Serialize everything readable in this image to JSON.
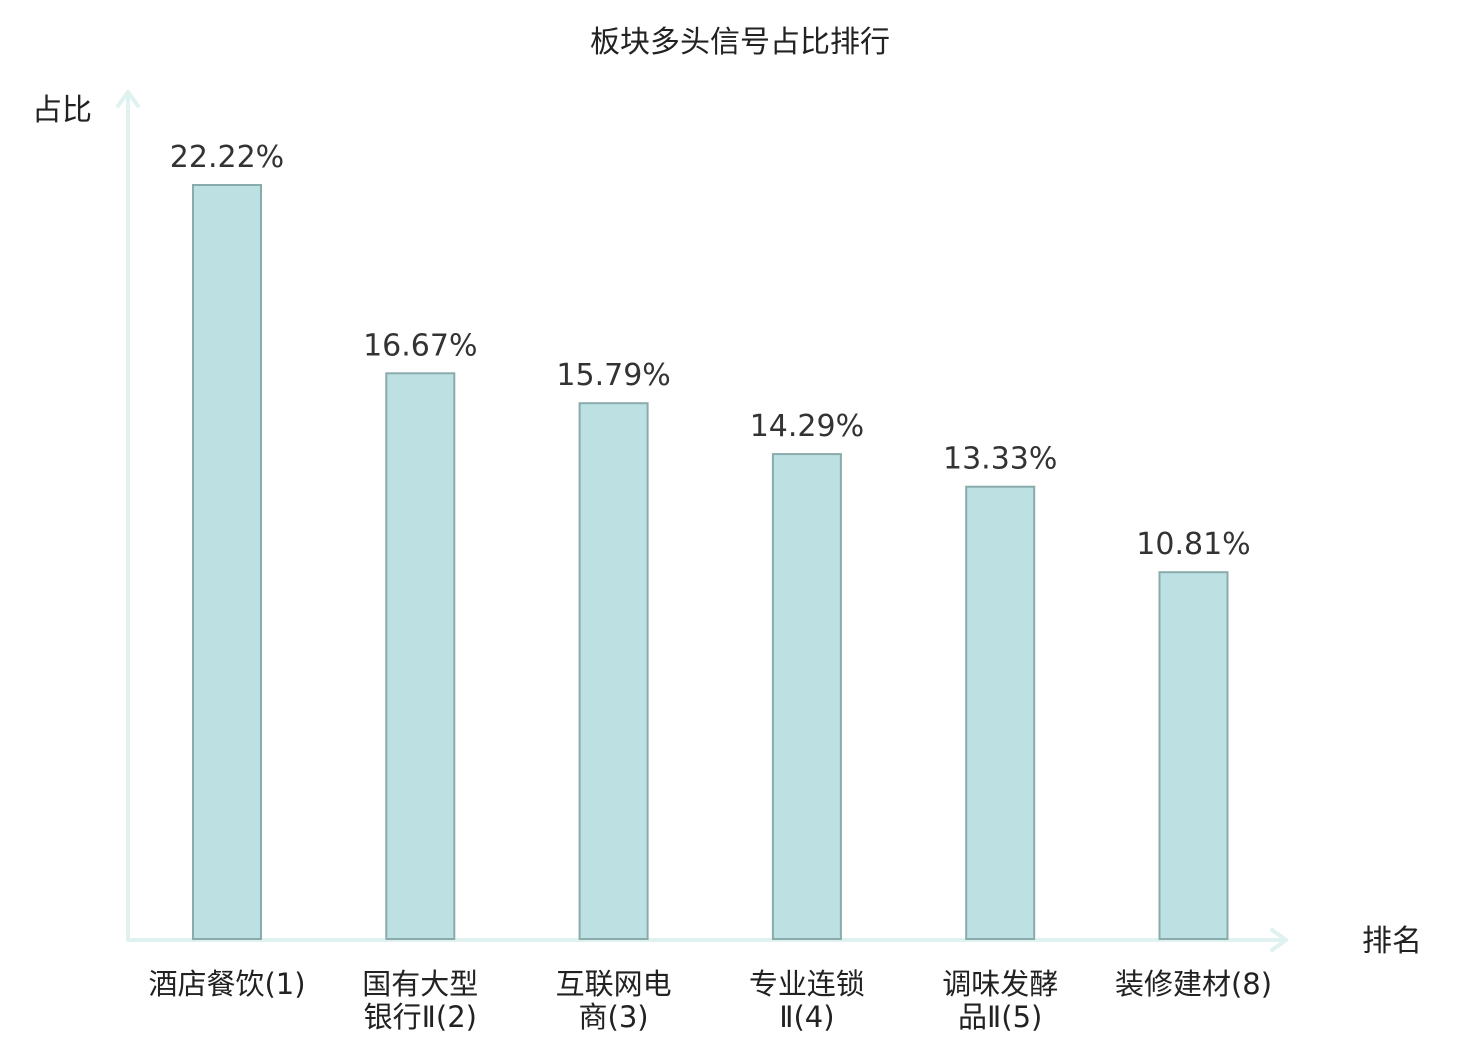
{
  "chart_data": {
    "type": "bar",
    "title": "板块多头信号占比排行",
    "xlabel": "排名",
    "ylabel": "占比",
    "categories": [
      [
        "酒店餐饮(1)"
      ],
      [
        "国有大型",
        "银行Ⅱ(2)"
      ],
      [
        "互联网电",
        "商(3)"
      ],
      [
        "专业连锁",
        "Ⅱ(4)"
      ],
      [
        "调味发酵",
        "品Ⅱ(5)"
      ],
      [
        "装修建材(8)"
      ]
    ],
    "values": [
      22.22,
      16.67,
      15.79,
      14.29,
      13.33,
      10.81
    ],
    "value_labels": [
      "22.22%",
      "16.67%",
      "15.79%",
      "14.29%",
      "13.33%",
      "10.81%"
    ],
    "highlight_index": 5,
    "ylim": [
      0,
      22.22
    ],
    "grid": false,
    "legend": "none",
    "colors": {
      "bar_fill": "#bde0e2",
      "bar_stroke": "#8aabac",
      "axis": "#e0f2ef",
      "text": "#222222",
      "highlight_text": "#e0141e"
    }
  }
}
